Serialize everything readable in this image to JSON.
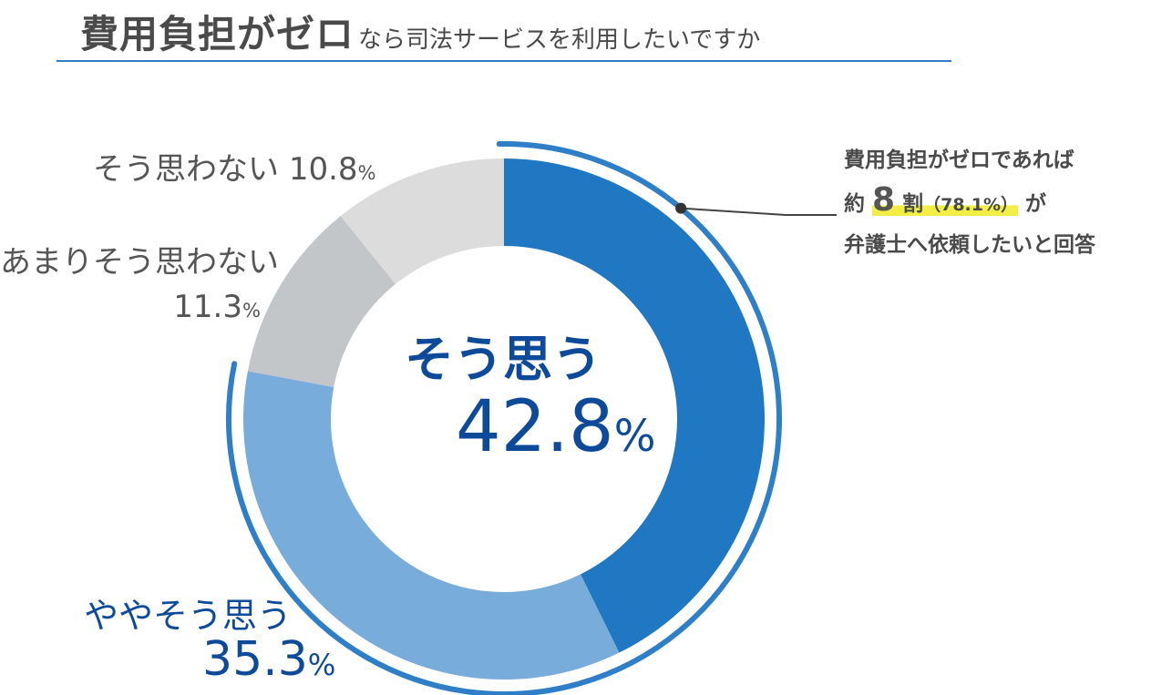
{
  "title": {
    "main": "費用負担がゼロ",
    "sub": "なら司法サービスを利用したいですか"
  },
  "chart_data": {
    "type": "pie",
    "variant": "donut",
    "title": "費用負担がゼロなら司法サービスを利用したいですか",
    "slices": [
      {
        "label": "そう思う",
        "value": 42.8,
        "value_label": "42.8",
        "color": "#1f78c1"
      },
      {
        "label": "ややそう思う",
        "value": 35.3,
        "value_label": "35.3",
        "color": "#78acdb"
      },
      {
        "label": "あまりそう思わない",
        "value": 11.3,
        "value_label": "11.3",
        "color": "#c3c6c9"
      },
      {
        "label": "そう思わない",
        "value": 10.8,
        "value_label": "10.8",
        "color": "#dcdcdc"
      }
    ],
    "unit": "%",
    "start": "top",
    "direction": "clockwise",
    "bracket_color": "#2e7fc8"
  },
  "callout": {
    "line1": "費用負担がゼロであれば",
    "line2_prefix": "約",
    "line2_big": "8",
    "line2_unit": "割",
    "line2_paren": "（78.1%）",
    "line2_suffix": "が",
    "line3": "弁護士へ依頼したいと回答"
  }
}
